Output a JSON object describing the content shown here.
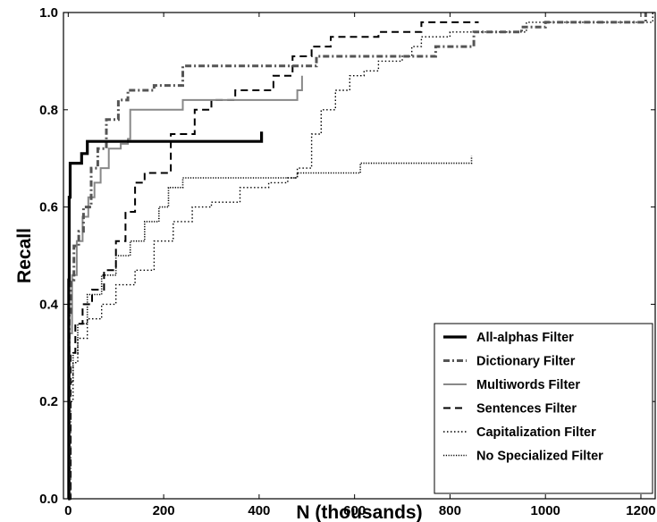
{
  "chart_data": {
    "type": "line",
    "title": "",
    "xlabel": "N (thousands)",
    "ylabel": "Recall",
    "xlim": [
      -10,
      1230
    ],
    "ylim": [
      0.0,
      1.0
    ],
    "x_ticks": [
      0,
      200,
      400,
      600,
      800,
      1000,
      1200
    ],
    "x_tick_labels": [
      "0",
      "200",
      "400",
      "600",
      "800",
      "1000",
      "1200"
    ],
    "y_ticks": [
      0.0,
      0.2,
      0.4,
      0.6,
      0.8,
      1.0
    ],
    "y_tick_labels": [
      "0.0",
      "0.2",
      "0.4",
      "0.6",
      "0.8",
      "1.0"
    ],
    "grid": false,
    "legend_position": "bottom-right",
    "series": [
      {
        "name": "All-alphas Filter",
        "style": "solid-thick",
        "color": "#000000",
        "points": [
          [
            0,
            0
          ],
          [
            1,
            0.45
          ],
          [
            2,
            0.62
          ],
          [
            4,
            0.69
          ],
          [
            20,
            0.69
          ],
          [
            28,
            0.71
          ],
          [
            40,
            0.735
          ],
          [
            290,
            0.735
          ],
          [
            405,
            0.735
          ],
          [
            405,
            0.755
          ]
        ]
      },
      {
        "name": "Dictionary Filter",
        "style": "dashdot",
        "color": "#555555",
        "points": [
          [
            0,
            0
          ],
          [
            2,
            0.38
          ],
          [
            6,
            0.45
          ],
          [
            12,
            0.52
          ],
          [
            22,
            0.55
          ],
          [
            32,
            0.6
          ],
          [
            48,
            0.68
          ],
          [
            62,
            0.72
          ],
          [
            80,
            0.78
          ],
          [
            105,
            0.82
          ],
          [
            125,
            0.84
          ],
          [
            180,
            0.85
          ],
          [
            240,
            0.89
          ],
          [
            330,
            0.89
          ],
          [
            470,
            0.89
          ],
          [
            520,
            0.91
          ],
          [
            600,
            0.91
          ],
          [
            700,
            0.91
          ],
          [
            770,
            0.93
          ],
          [
            850,
            0.96
          ],
          [
            950,
            0.97
          ],
          [
            1000,
            0.98
          ],
          [
            1150,
            0.98
          ],
          [
            1210,
            1.0
          ]
        ]
      },
      {
        "name": "Multiwords Filter",
        "style": "solid",
        "color": "#888888",
        "points": [
          [
            0,
            0
          ],
          [
            3,
            0.34
          ],
          [
            8,
            0.46
          ],
          [
            18,
            0.53
          ],
          [
            30,
            0.58
          ],
          [
            42,
            0.62
          ],
          [
            55,
            0.65
          ],
          [
            68,
            0.68
          ],
          [
            85,
            0.72
          ],
          [
            110,
            0.73
          ],
          [
            125,
            0.74
          ],
          [
            130,
            0.8
          ],
          [
            170,
            0.8
          ],
          [
            235,
            0.8
          ],
          [
            240,
            0.82
          ],
          [
            330,
            0.82
          ],
          [
            420,
            0.82
          ],
          [
            480,
            0.84
          ],
          [
            490,
            0.87
          ]
        ]
      },
      {
        "name": "Sentences Filter",
        "style": "dashed",
        "color": "#000000",
        "points": [
          [
            0,
            0
          ],
          [
            5,
            0.3
          ],
          [
            15,
            0.36
          ],
          [
            30,
            0.4
          ],
          [
            50,
            0.43
          ],
          [
            75,
            0.47
          ],
          [
            100,
            0.53
          ],
          [
            120,
            0.59
          ],
          [
            140,
            0.65
          ],
          [
            160,
            0.67
          ],
          [
            190,
            0.67
          ],
          [
            215,
            0.75
          ],
          [
            265,
            0.8
          ],
          [
            300,
            0.82
          ],
          [
            350,
            0.84
          ],
          [
            430,
            0.87
          ],
          [
            470,
            0.91
          ],
          [
            510,
            0.93
          ],
          [
            550,
            0.95
          ],
          [
            650,
            0.96
          ],
          [
            700,
            0.96
          ],
          [
            740,
            0.98
          ],
          [
            850,
            0.98
          ],
          [
            860,
            0.98
          ]
        ]
      },
      {
        "name": "Capitalization Filter",
        "style": "dotted",
        "color": "#000000",
        "points": [
          [
            0,
            0
          ],
          [
            5,
            0.2
          ],
          [
            10,
            0.28
          ],
          [
            20,
            0.33
          ],
          [
            40,
            0.37
          ],
          [
            70,
            0.4
          ],
          [
            100,
            0.44
          ],
          [
            140,
            0.47
          ],
          [
            180,
            0.53
          ],
          [
            220,
            0.57
          ],
          [
            260,
            0.6
          ],
          [
            300,
            0.61
          ],
          [
            360,
            0.64
          ],
          [
            420,
            0.65
          ],
          [
            460,
            0.66
          ],
          [
            480,
            0.68
          ],
          [
            510,
            0.75
          ],
          [
            530,
            0.8
          ],
          [
            560,
            0.84
          ],
          [
            590,
            0.87
          ],
          [
            620,
            0.88
          ],
          [
            650,
            0.9
          ],
          [
            700,
            0.91
          ],
          [
            720,
            0.93
          ],
          [
            740,
            0.95
          ],
          [
            800,
            0.96
          ],
          [
            960,
            0.96
          ],
          [
            960,
            0.98
          ],
          [
            1220,
            0.98
          ],
          [
            1225,
            1.0
          ]
        ]
      },
      {
        "name": "No Specialized Filter",
        "style": "dotted-dense",
        "color": "#000000",
        "points": [
          [
            0,
            0
          ],
          [
            3,
            0.24
          ],
          [
            10,
            0.3
          ],
          [
            20,
            0.36
          ],
          [
            40,
            0.42
          ],
          [
            70,
            0.46
          ],
          [
            100,
            0.5
          ],
          [
            130,
            0.53
          ],
          [
            160,
            0.57
          ],
          [
            190,
            0.6
          ],
          [
            210,
            0.64
          ],
          [
            240,
            0.66
          ],
          [
            300,
            0.66
          ],
          [
            480,
            0.67
          ],
          [
            610,
            0.67
          ],
          [
            612,
            0.69
          ],
          [
            840,
            0.69
          ],
          [
            845,
            0.705
          ]
        ]
      }
    ]
  }
}
